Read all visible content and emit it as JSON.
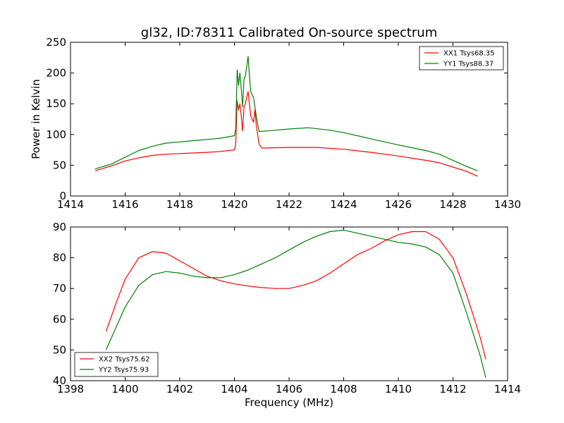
{
  "chart_data": [
    {
      "type": "line",
      "title": "gl32, ID:78311 Calibrated On-source spectrum",
      "xlabel": "",
      "ylabel": "Power in Kelvin",
      "xlim": [
        1414,
        1430
      ],
      "ylim": [
        0,
        250
      ],
      "xticks": [
        "1414",
        "1416",
        "1418",
        "1420",
        "1422",
        "1424",
        "1426",
        "1428",
        "1430"
      ],
      "yticks": [
        "0",
        "50",
        "100",
        "150",
        "200",
        "250"
      ],
      "grid": false,
      "legend_position": "top-right",
      "series": [
        {
          "name": "XX1 Tsys68.35",
          "color": "#ff0000",
          "points": [
            [
              1414.9,
              41
            ],
            [
              1415.5,
              49
            ],
            [
              1416,
              57
            ],
            [
              1416.5,
              62
            ],
            [
              1417,
              66
            ],
            [
              1417.5,
              68
            ],
            [
              1418,
              69
            ],
            [
              1418.5,
              70
            ],
            [
              1419,
              71
            ],
            [
              1419.5,
              72.5
            ],
            [
              1420,
              75
            ],
            [
              1420.05,
              85
            ],
            [
              1420.1,
              155
            ],
            [
              1420.15,
              140
            ],
            [
              1420.2,
              150
            ],
            [
              1420.25,
              130
            ],
            [
              1420.3,
              106
            ],
            [
              1420.35,
              145
            ],
            [
              1420.4,
              150
            ],
            [
              1420.5,
              170
            ],
            [
              1420.55,
              150
            ],
            [
              1420.6,
              130
            ],
            [
              1420.7,
              120
            ],
            [
              1420.75,
              140
            ],
            [
              1420.8,
              115
            ],
            [
              1420.9,
              85
            ],
            [
              1421,
              78
            ],
            [
              1422,
              79
            ],
            [
              1423,
              79
            ],
            [
              1424,
              76
            ],
            [
              1425,
              71
            ],
            [
              1426,
              65
            ],
            [
              1427,
              58
            ],
            [
              1427.5,
              54
            ],
            [
              1428,
              47
            ],
            [
              1428.5,
              40
            ],
            [
              1428.9,
              32
            ]
          ]
        },
        {
          "name": "YY1 Tsys88.37",
          "color": "#008000",
          "points": [
            [
              1414.9,
              44
            ],
            [
              1415.5,
              52
            ],
            [
              1416,
              63
            ],
            [
              1416.5,
              74
            ],
            [
              1417,
              81
            ],
            [
              1417.5,
              86
            ],
            [
              1418,
              88
            ],
            [
              1418.5,
              90
            ],
            [
              1419,
              92
            ],
            [
              1419.5,
              94
            ],
            [
              1420,
              98
            ],
            [
              1420.05,
              110
            ],
            [
              1420.1,
              205
            ],
            [
              1420.15,
              180
            ],
            [
              1420.2,
              200
            ],
            [
              1420.25,
              175
            ],
            [
              1420.3,
              145
            ],
            [
              1420.35,
              190
            ],
            [
              1420.4,
              195
            ],
            [
              1420.5,
              227
            ],
            [
              1420.55,
              195
            ],
            [
              1420.6,
              170
            ],
            [
              1420.7,
              160
            ],
            [
              1420.75,
              145
            ],
            [
              1420.8,
              130
            ],
            [
              1420.9,
              105
            ],
            [
              1421,
              105
            ],
            [
              1422,
              109
            ],
            [
              1422.7,
              111
            ],
            [
              1423.5,
              107
            ],
            [
              1424,
              103
            ],
            [
              1425,
              93
            ],
            [
              1426,
              83
            ],
            [
              1427,
              74
            ],
            [
              1427.5,
              68
            ],
            [
              1428,
              58
            ],
            [
              1428.5,
              48
            ],
            [
              1428.9,
              41
            ]
          ]
        }
      ]
    },
    {
      "type": "line",
      "title": "",
      "xlabel": "Frequency (MHz)",
      "ylabel": "",
      "xlim": [
        1398,
        1414
      ],
      "ylim": [
        40,
        90
      ],
      "xticks": [
        "1398",
        "1400",
        "1402",
        "1404",
        "1406",
        "1408",
        "1410",
        "1412",
        "1414"
      ],
      "yticks": [
        "40",
        "50",
        "60",
        "70",
        "80",
        "90"
      ],
      "grid": false,
      "legend_position": "bottom-left",
      "series": [
        {
          "name": "XX2 Tsys75.62",
          "color": "#ff0000",
          "points": [
            [
              1399.3,
              56
            ],
            [
              1399.7,
              66
            ],
            [
              1400,
              73
            ],
            [
              1400.5,
              80
            ],
            [
              1401,
              82
            ],
            [
              1401.5,
              81.5
            ],
            [
              1402,
              79
            ],
            [
              1402.5,
              76.5
            ],
            [
              1403,
              74
            ],
            [
              1403.5,
              72.5
            ],
            [
              1404,
              71.5
            ],
            [
              1404.5,
              70.8
            ],
            [
              1405,
              70.3
            ],
            [
              1405.5,
              70
            ],
            [
              1406,
              70
            ],
            [
              1406.5,
              71
            ],
            [
              1407,
              72.5
            ],
            [
              1407.5,
              75
            ],
            [
              1408,
              78
            ],
            [
              1408.5,
              81
            ],
            [
              1409,
              83
            ],
            [
              1409.5,
              85.5
            ],
            [
              1410,
              87.5
            ],
            [
              1410.5,
              88.5
            ],
            [
              1411,
              88.5
            ],
            [
              1411.5,
              86
            ],
            [
              1412,
              80
            ],
            [
              1412.5,
              68
            ],
            [
              1413,
              54
            ],
            [
              1413.2,
              47
            ]
          ]
        },
        {
          "name": "YY2 Tsys75.93",
          "color": "#008000",
          "points": [
            [
              1399.3,
              50
            ],
            [
              1399.7,
              58
            ],
            [
              1400,
              64
            ],
            [
              1400.5,
              71
            ],
            [
              1401,
              74.5
            ],
            [
              1401.5,
              75.5
            ],
            [
              1402,
              75
            ],
            [
              1402.5,
              74
            ],
            [
              1403,
              73.5
            ],
            [
              1403.5,
              73.5
            ],
            [
              1404,
              74.5
            ],
            [
              1404.5,
              76
            ],
            [
              1405,
              78
            ],
            [
              1405.5,
              80
            ],
            [
              1406,
              82.5
            ],
            [
              1406.5,
              85
            ],
            [
              1407,
              87
            ],
            [
              1407.5,
              88.5
            ],
            [
              1408,
              89
            ],
            [
              1408.5,
              88
            ],
            [
              1409,
              87
            ],
            [
              1409.5,
              86
            ],
            [
              1410,
              85
            ],
            [
              1410.5,
              84.5
            ],
            [
              1411,
              83.5
            ],
            [
              1411.5,
              81
            ],
            [
              1412,
              75
            ],
            [
              1412.5,
              62
            ],
            [
              1413,
              48
            ],
            [
              1413.2,
              41
            ]
          ]
        }
      ]
    }
  ]
}
